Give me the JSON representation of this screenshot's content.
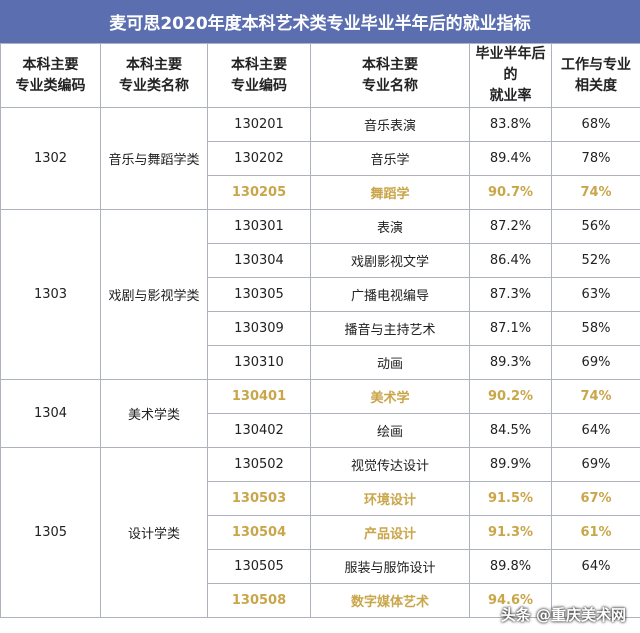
{
  "title": "麦可思2020年度本科艺术类专业毕业半年后的就业指标",
  "headers": [
    "本科主要专业类编码",
    "本科主要专业类名称",
    "本科主要专业编码",
    "本科主要专业名称",
    "毕业半年后的就业率",
    "工作与专业相关度"
  ],
  "header_lines": [
    [
      "本科主要",
      "专业类编码"
    ],
    [
      "本科主要",
      "专业类名称"
    ],
    [
      "本科主要",
      "专业编码"
    ],
    [
      "本科主要",
      "专业名称"
    ],
    [
      "毕业半年后的",
      "就业率"
    ],
    [
      "工作与专业",
      "相关度"
    ]
  ],
  "groups": [
    {
      "code": "1302",
      "name": "音乐与舞蹈学类",
      "rows": [
        {
          "code": "130201",
          "name": "音乐表演",
          "rate": "83.8%",
          "rel": "68%",
          "highlight": false
        },
        {
          "code": "130202",
          "name": "音乐学",
          "rate": "89.4%",
          "rel": "78%",
          "highlight": false
        },
        {
          "code": "130205",
          "name": "舞蹈学",
          "rate": "90.7%",
          "rel": "74%",
          "highlight": true
        }
      ]
    },
    {
      "code": "1303",
      "name": "戏剧与影视学类",
      "rows": [
        {
          "code": "130301",
          "name": "表演",
          "rate": "87.2%",
          "rel": "56%",
          "highlight": false
        },
        {
          "code": "130304",
          "name": "戏剧影视文学",
          "rate": "86.4%",
          "rel": "52%",
          "highlight": false
        },
        {
          "code": "130305",
          "name": "广播电视编导",
          "rate": "87.3%",
          "rel": "63%",
          "highlight": false
        },
        {
          "code": "130309",
          "name": "播音与主持艺术",
          "rate": "87.1%",
          "rel": "58%",
          "highlight": false
        },
        {
          "code": "130310",
          "name": "动画",
          "rate": "89.3%",
          "rel": "69%",
          "highlight": false
        }
      ]
    },
    {
      "code": "1304",
      "name": "美术学类",
      "rows": [
        {
          "code": "130401",
          "name": "美术学",
          "rate": "90.2%",
          "rel": "74%",
          "highlight": true
        },
        {
          "code": "130402",
          "name": "绘画",
          "rate": "84.5%",
          "rel": "64%",
          "highlight": false
        }
      ]
    },
    {
      "code": "1305",
      "name": "设计学类",
      "rows": [
        {
          "code": "130502",
          "name": "视觉传达设计",
          "rate": "89.9%",
          "rel": "69%",
          "highlight": false
        },
        {
          "code": "130503",
          "name": "环境设计",
          "rate": "91.5%",
          "rel": "67%",
          "highlight": true
        },
        {
          "code": "130504",
          "name": "产品设计",
          "rate": "91.3%",
          "rel": "61%",
          "highlight": true
        },
        {
          "code": "130505",
          "name": "服装与服饰设计",
          "rate": "89.8%",
          "rel": "64%",
          "highlight": false
        },
        {
          "code": "130508",
          "name": "数字媒体艺术",
          "rate": "94.6%",
          "rel": "",
          "highlight": true
        }
      ]
    }
  ],
  "watermark": "头条 @重庆美术网",
  "colors": {
    "title_bg": "#5b6eb0",
    "highlight_text": "#caa64a",
    "border": "#aeb2bc"
  }
}
